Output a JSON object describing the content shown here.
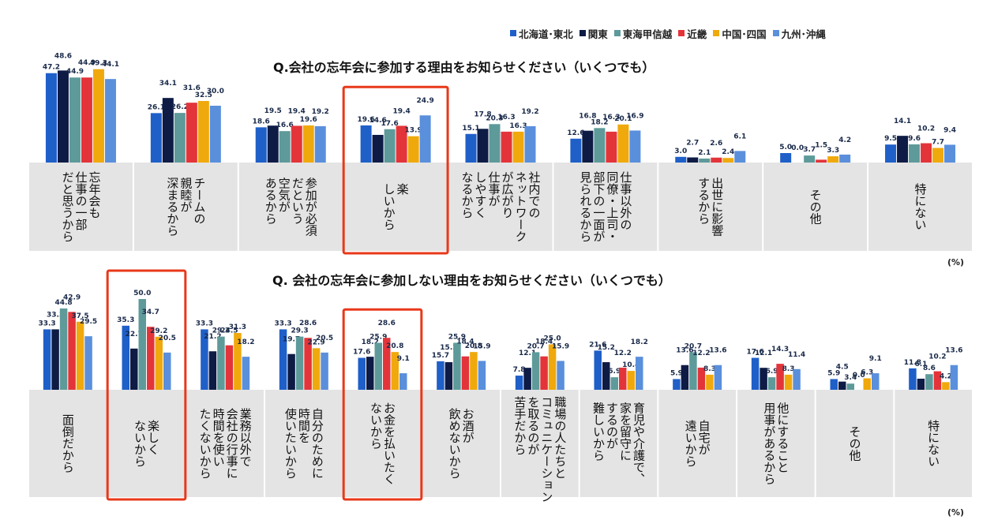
{
  "legend_items": [
    {
      "name": "北海道･東北",
      "color": "#1f5fc8"
    },
    {
      "name": "関東",
      "color": "#0d1b45"
    },
    {
      "name": "東海甲信越",
      "color": "#5e9a9a"
    },
    {
      "name": "近畿",
      "color": "#e3343a"
    },
    {
      "name": "中国･四国",
      "color": "#f0a90c"
    },
    {
      "name": "九州･沖縄",
      "color": "#5a8fdc"
    }
  ],
  "unit_label": "(%)",
  "highlight_color": "#e8381a",
  "chart_data": [
    {
      "type": "bar",
      "title": "Q.会社の忘年会に参加する理由をお知らせください（いくつでも）",
      "unit": "(%)",
      "categories": [
        "忘年会も\n仕事の一部\nだと思うから",
        "チームの\n親睦が\n深まるから",
        "参加が必須\nだという\n空気が\nあるから",
        "楽\nしいから",
        "社内での\nネットワーク\nが広がり\n仕事が\nしやすく\nなるから",
        "仕事以外の\n同僚・上司・\n部下の一面が\n見られるから",
        "出世に影響\nするから",
        "その他",
        "特にない"
      ],
      "highlighted": [
        3
      ],
      "series": [
        {
          "name": "北海道･東北",
          "values": [
            47.2,
            26.1,
            18.6,
            19.6,
            15.1,
            12.6,
            3.0,
            5.0,
            9.5
          ]
        },
        {
          "name": "関東",
          "values": [
            48.6,
            34.1,
            19.5,
            14.6,
            17.8,
            16.8,
            2.7,
            0.0,
            14.1
          ]
        },
        {
          "name": "東海甲信越",
          "values": [
            44.9,
            26.2,
            16.6,
            17.6,
            20.3,
            18.2,
            2.1,
            3.7,
            9.6
          ]
        },
        {
          "name": "近畿",
          "values": [
            44.9,
            31.6,
            19.4,
            19.4,
            16.3,
            16.3,
            2.6,
            1.5,
            10.2
          ]
        },
        {
          "name": "中国･四国",
          "values": [
            49.3,
            32.5,
            19.6,
            13.9,
            16.3,
            20.1,
            2.4,
            3.3,
            7.7
          ]
        },
        {
          "name": "九州･沖縄",
          "values": [
            44.1,
            30.0,
            19.2,
            24.9,
            19.2,
            16.9,
            6.1,
            4.2,
            9.4
          ]
        }
      ]
    },
    {
      "type": "bar",
      "title": "Q. 会社の忘年会に参加しない理由をお知らせください（いくつでも）",
      "unit": "(%)",
      "categories": [
        "面倒だから",
        "楽しく\nないから",
        "業務以外で\n会社の行事に\n時間を使い\nたくないから",
        "自分のために\n時間を\n使いたいから",
        "お金を払いたく\nないから",
        "お酒が\n飲めないから",
        "職場の人たちと\nコミュニケーション\nを取るのが\n苦手だから",
        "育児や介護で、\n家を留守に\nするのが\n難しいから",
        "自宅が\n遠いから",
        "他にすること\n用事があるから",
        "その他",
        "特にない"
      ],
      "highlighted": [
        1,
        4
      ],
      "series": [
        {
          "name": "北海道･東北",
          "values": [
            33.3,
            35.3,
            33.3,
            33.3,
            17.6,
            15.7,
            7.8,
            21.6,
            5.9,
            17.6,
            5.9,
            11.8
          ]
        },
        {
          "name": "関東",
          "values": [
            33.3,
            22.7,
            21.2,
            19.7,
            18.2,
            15.2,
            12.1,
            15.2,
            13.6,
            12.1,
            4.5,
            6.1
          ]
        },
        {
          "name": "東海甲信越",
          "values": [
            44.8,
            50.0,
            29.3,
            29.3,
            25.9,
            25.9,
            20.7,
            6.9,
            20.7,
            6.9,
            3.4,
            8.6
          ]
        },
        {
          "name": "近畿",
          "values": [
            42.9,
            34.7,
            24.5,
            28.6,
            28.6,
            18.4,
            18.4,
            12.2,
            12.2,
            14.3,
            0.0,
            10.2
          ]
        },
        {
          "name": "中国･四国",
          "values": [
            37.5,
            29.2,
            31.3,
            22.9,
            20.8,
            20.8,
            25.0,
            10.4,
            8.3,
            8.3,
            6.3,
            4.2
          ]
        },
        {
          "name": "九州･沖縄",
          "values": [
            29.5,
            20.5,
            18.2,
            20.5,
            9.1,
            15.9,
            15.9,
            18.2,
            13.6,
            11.4,
            9.1,
            13.6
          ]
        }
      ]
    }
  ]
}
